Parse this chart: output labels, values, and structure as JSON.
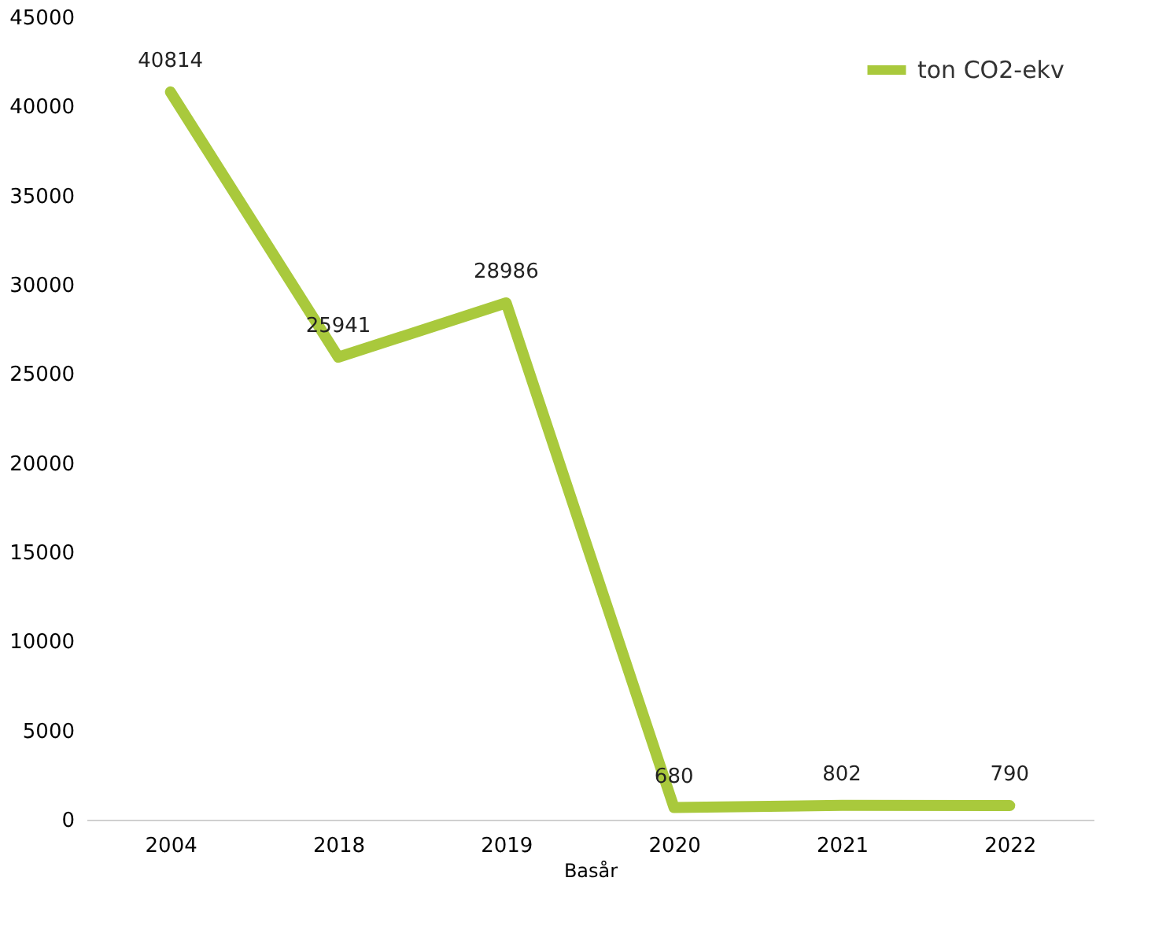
{
  "chart_data": {
    "type": "line",
    "xlabel": "Basår",
    "categories": [
      "2004",
      "2018",
      "2019",
      "2020",
      "2021",
      "2022"
    ],
    "series": [
      {
        "name": "ton CO2-ekv",
        "color": "#a9c93c",
        "values": [
          40814,
          25941,
          28986,
          680,
          802,
          790
        ]
      }
    ],
    "ylim": [
      0,
      45000
    ],
    "yticks": [
      0,
      5000,
      10000,
      15000,
      20000,
      25000,
      30000,
      35000,
      40000,
      45000
    ],
    "data_labels": true,
    "grid": false,
    "legend": "top right",
    "line_style": "solid"
  }
}
